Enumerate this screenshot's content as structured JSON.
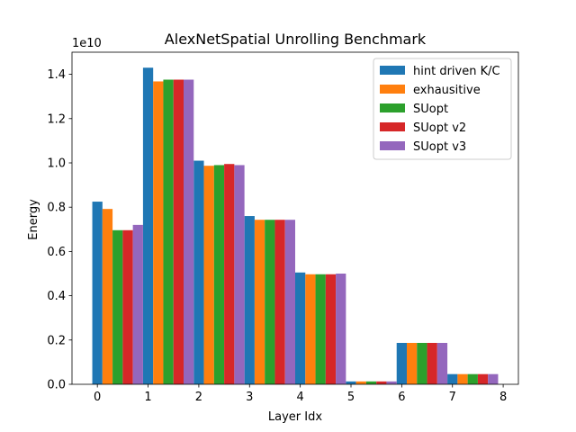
{
  "chart_data": {
    "type": "bar",
    "title": "AlexNetSpatial Unrolling Benchmark",
    "xlabel": "Layer Idx",
    "ylabel": "Energy",
    "y_scale_label": "1e10",
    "y_multiplier": 10000000000,
    "xlim": [
      -0.5,
      8.3
    ],
    "ylim": [
      0,
      1.5
    ],
    "xticks": [
      "0",
      "1",
      "2",
      "3",
      "4",
      "5",
      "6",
      "7",
      "8"
    ],
    "yticks": [
      "0.0",
      "0.2",
      "0.4",
      "0.6",
      "0.8",
      "1.0",
      "1.2",
      "1.4"
    ],
    "categories": [
      0,
      1,
      2,
      3,
      4,
      5,
      6,
      7
    ],
    "legend_position": "top-right",
    "grid": false,
    "series": [
      {
        "name": "hint driven K/C",
        "color": "#1f77b4",
        "values": [
          0.825,
          1.43,
          1.01,
          0.76,
          0.505,
          0.013,
          0.187,
          0.046
        ]
      },
      {
        "name": "exhausitive",
        "color": "#ff7f0e",
        "values": [
          0.792,
          1.368,
          0.987,
          0.743,
          0.497,
          0.013,
          0.187,
          0.046
        ]
      },
      {
        "name": "SUopt",
        "color": "#2ca02c",
        "values": [
          0.696,
          1.376,
          0.99,
          0.743,
          0.497,
          0.013,
          0.187,
          0.046
        ]
      },
      {
        "name": "SUopt v2",
        "color": "#d62728",
        "values": [
          0.696,
          1.376,
          0.995,
          0.743,
          0.497,
          0.013,
          0.187,
          0.046
        ]
      },
      {
        "name": "SUopt v3",
        "color": "#9467bd",
        "values": [
          0.72,
          1.376,
          0.99,
          0.743,
          0.5,
          0.013,
          0.187,
          0.046
        ]
      }
    ]
  }
}
